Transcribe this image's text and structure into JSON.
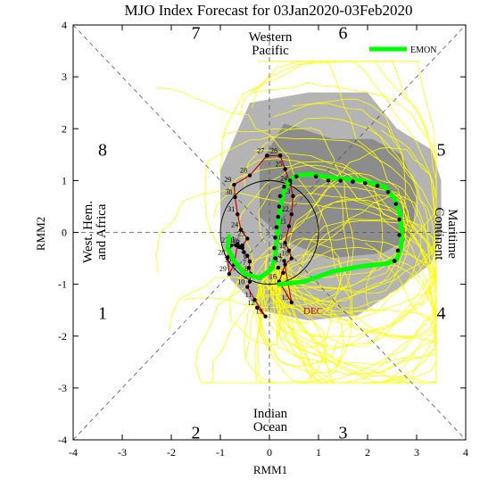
{
  "chart_data": {
    "type": "line",
    "title": "MJO Index Forecast for 03Jan2020-03Feb2020",
    "xlabel": "RMM1",
    "ylabel": "RMM2",
    "xlim": [
      -4,
      4
    ],
    "ylim": [
      -4,
      4
    ],
    "x_ticks": [
      "-4",
      "-3",
      "-2",
      "-1",
      "0",
      "1",
      "2",
      "3",
      "4"
    ],
    "y_ticks": [
      "-4",
      "-3",
      "-2",
      "-1",
      "0",
      "1",
      "2",
      "3",
      "4"
    ],
    "phase_labels": [
      {
        "text": "1",
        "x": -3.4,
        "y": -1.55
      },
      {
        "text": "2",
        "x": -1.5,
        "y": -3.85
      },
      {
        "text": "3",
        "x": 1.5,
        "y": -3.85
      },
      {
        "text": "4",
        "x": 3.5,
        "y": -1.55
      },
      {
        "text": "5",
        "x": 3.5,
        "y": 1.6
      },
      {
        "text": "6",
        "x": 1.5,
        "y": 3.85
      },
      {
        "text": "7",
        "x": -1.5,
        "y": 3.85
      },
      {
        "text": "8",
        "x": -3.4,
        "y": 1.6
      }
    ],
    "region_labels": {
      "top": [
        "Western",
        "Pacific"
      ],
      "bottom": [
        "Indian",
        "Ocean"
      ],
      "left": [
        "West. Hem.",
        "and Africa"
      ],
      "right": [
        "Maritime",
        "Continent"
      ]
    },
    "legend": {
      "label": "EMON",
      "color": "#00ff00",
      "placement": "top-right"
    },
    "month_label": "DEC",
    "colors": {
      "ensemble": "#ffff00",
      "shade_outer": "#b4b4b4",
      "shade_inner": "#8c8c8c",
      "observed": "#cc0000",
      "mean": "#00ff00",
      "dots": "#000000"
    },
    "observed": [
      {
        "label": "12",
        "x": -0.25,
        "y": -1.45
      },
      {
        "label": "13",
        "x": -0.08,
        "y": -1.62
      },
      {
        "label": "11",
        "x": -0.3,
        "y": -1.3
      },
      {
        "label": "10",
        "x": -0.45,
        "y": -1.05
      },
      {
        "label": "9",
        "x": -0.4,
        "y": -0.95
      },
      {
        "label": "8",
        "x": -0.38,
        "y": -0.8
      },
      {
        "label": "7",
        "x": -0.42,
        "y": -0.68
      },
      {
        "label": "6",
        "x": -0.4,
        "y": -0.56
      },
      {
        "label": "5",
        "x": -0.45,
        "y": -0.45
      },
      {
        "label": "4",
        "x": -0.52,
        "y": -0.38
      },
      {
        "label": "3",
        "x": -0.55,
        "y": -0.3
      },
      {
        "label": "2",
        "x": -0.62,
        "y": -0.28
      },
      {
        "label": "1",
        "x": -0.68,
        "y": -0.25
      },
      {
        "label": "31",
        "x": -0.65,
        "y": -0.22
      },
      {
        "label": "30",
        "x": -0.72,
        "y": -0.62
      },
      {
        "label": "29",
        "x": -0.82,
        "y": -0.8
      },
      {
        "label": "28",
        "x": -0.85,
        "y": -0.48
      },
      {
        "label": "27",
        "x": -0.78,
        "y": -0.25
      },
      {
        "label": "26",
        "x": -0.55,
        "y": -0.25
      },
      {
        "label": "25",
        "x": -0.45,
        "y": -0.12
      },
      {
        "label": "24",
        "x": -0.58,
        "y": 0.05
      },
      {
        "label": "31b",
        "x": -0.65,
        "y": 0.35
      },
      {
        "label": "30",
        "x": -0.7,
        "y": 0.68
      },
      {
        "label": "29",
        "x": -0.72,
        "y": 0.92
      },
      {
        "label": "28",
        "x": -0.4,
        "y": 1.1
      },
      {
        "label": "27",
        "x": -0.05,
        "y": 1.48
      },
      {
        "label": "26",
        "x": 0.22,
        "y": 1.48
      },
      {
        "label": "25",
        "x": 0.32,
        "y": 1.22
      },
      {
        "label": "24",
        "x": 0.42,
        "y": 0.95
      },
      {
        "label": "23",
        "x": 0.48,
        "y": 0.7
      },
      {
        "label": "22",
        "x": 0.45,
        "y": 0.35
      },
      {
        "label": "21",
        "x": 0.4,
        "y": 0.12
      },
      {
        "label": "20",
        "x": 0.32,
        "y": -0.2
      },
      {
        "label": "19",
        "x": 0.4,
        "y": -0.35
      },
      {
        "label": "18",
        "x": 0.45,
        "y": -0.5
      },
      {
        "label": "17",
        "x": 0.32,
        "y": -0.62
      },
      {
        "label": "16",
        "x": 0.2,
        "y": -0.95
      },
      {
        "label": "15",
        "x": 0.45,
        "y": -1.35
      },
      {
        "label": "14",
        "x": 0.3,
        "y": -0.55
      }
    ],
    "forecast_dots_a": [
      [
        0.28,
        -0.78
      ],
      [
        0.18,
        -0.68
      ],
      [
        0.12,
        -0.5
      ],
      [
        0.1,
        -0.3
      ],
      [
        0.12,
        -0.1
      ],
      [
        0.15,
        0.1
      ],
      [
        0.18,
        0.3
      ],
      [
        0.2,
        0.5
      ],
      [
        0.22,
        0.7
      ],
      [
        0.3,
        0.88
      ],
      [
        0.42,
        1.0
      ],
      [
        0.55,
        1.08
      ]
    ],
    "forecast_dots_b": [
      [
        0.95,
        1.08
      ],
      [
        1.2,
        1.0
      ],
      [
        1.45,
        1.0
      ],
      [
        1.7,
        0.98
      ],
      [
        1.95,
        0.95
      ],
      [
        2.2,
        0.9
      ],
      [
        2.42,
        0.78
      ],
      [
        2.58,
        0.55
      ],
      [
        2.65,
        0.25
      ],
      [
        2.65,
        -0.05
      ],
      [
        2.62,
        -0.35
      ],
      [
        2.55,
        -0.55
      ]
    ],
    "mean_path": [
      [
        0.2,
        -1.0
      ],
      [
        0.7,
        -0.95
      ],
      [
        1.3,
        -0.75
      ],
      [
        1.9,
        -0.65
      ],
      [
        2.4,
        -0.6
      ],
      [
        2.6,
        -0.52
      ],
      [
        2.68,
        -0.3
      ],
      [
        2.7,
        0.0
      ],
      [
        2.66,
        0.35
      ],
      [
        2.55,
        0.65
      ],
      [
        2.35,
        0.88
      ],
      [
        1.9,
        1.0
      ],
      [
        1.3,
        1.05
      ],
      [
        0.85,
        1.12
      ],
      [
        0.55,
        1.1
      ],
      [
        0.4,
        1.0
      ],
      [
        0.28,
        0.75
      ],
      [
        0.22,
        0.45
      ],
      [
        0.18,
        0.15
      ],
      [
        0.15,
        -0.15
      ],
      [
        0.12,
        -0.45
      ],
      [
        0.05,
        -0.7
      ],
      [
        -0.2,
        -0.88
      ],
      [
        -0.5,
        -0.8
      ],
      [
        -0.72,
        -0.55
      ],
      [
        -0.85,
        -0.3
      ],
      [
        -0.82,
        -0.08
      ]
    ],
    "shade_outer": [
      [
        -1.0,
        -0.1
      ],
      [
        -1.0,
        1.2
      ],
      [
        -0.4,
        2.5
      ],
      [
        0.8,
        2.7
      ],
      [
        2.0,
        2.7
      ],
      [
        2.6,
        2.0
      ],
      [
        3.3,
        1.6
      ],
      [
        3.5,
        1.0
      ],
      [
        3.5,
        0.0
      ],
      [
        3.3,
        -0.6
      ],
      [
        2.6,
        -1.1
      ],
      [
        1.8,
        -1.6
      ],
      [
        0.8,
        -1.7
      ],
      [
        -0.2,
        -1.5
      ],
      [
        -0.8,
        -0.9
      ]
    ],
    "shade_inner": [
      [
        -0.2,
        1.3
      ],
      [
        0.3,
        2.1
      ],
      [
        1.3,
        1.8
      ],
      [
        2.1,
        1.8
      ],
      [
        2.7,
        1.5
      ],
      [
        3.0,
        0.8
      ],
      [
        2.9,
        -0.1
      ],
      [
        2.3,
        -0.4
      ],
      [
        1.2,
        -0.5
      ],
      [
        0.4,
        -0.2
      ],
      [
        -0.2,
        0.3
      ]
    ]
  }
}
